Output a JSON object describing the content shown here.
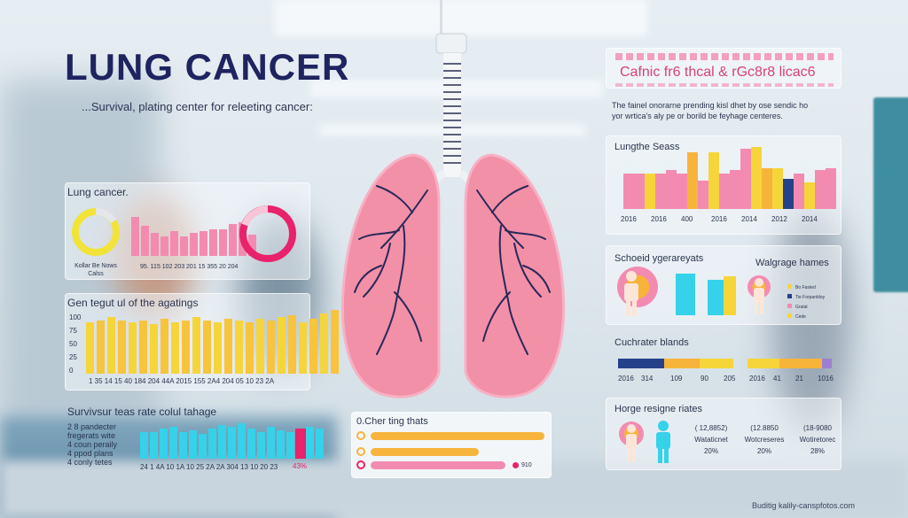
{
  "header": {
    "title": "LUNG CANCER",
    "subtitle": "...Survival, plating center for releeting cancer:"
  },
  "left_card1": {
    "heading": "Lung cancer.",
    "legend": "Kollar Be Nows\nCalss",
    "xlabels": "95. 115 102 203 201 15 355 20 204",
    "donut_left_color": "#f2e33a",
    "donut_right_color": "#e8226b"
  },
  "left_card2": {
    "heading": "Gen tegut ul of the agatings",
    "yticks": [
      "100",
      "75",
      "50",
      "25",
      "0"
    ],
    "xlabels": "1 35 14 15 40 184 204 44A 2015 155 2A4 204 05 10 23 2A"
  },
  "left_card3": {
    "heading": "Survivsur teas rate colul tahage",
    "items": [
      "2 8 pandecter",
      "fregerats wite",
      "4 coun peraily",
      "4 ppod plans",
      "4 conly tetes"
    ],
    "xlabels": "24 1 4A 10 1A 10 25 2A 2A 304 13 10 20 23",
    "highlight": "43%"
  },
  "bottom_center": {
    "heading": "0.Cher ting thats",
    "value": "910"
  },
  "right_header": {
    "banner": "Cafnic fr6 thcal & rGc8r8 licac6",
    "description": "The fainel onorarne prending kisl dhet by ose sendic ho\nyor wrtica's aly pe or borild be feyhage centeres."
  },
  "right_card1": {
    "heading": "Lungthe Seass",
    "xlabels": [
      "2016",
      "2016",
      "400",
      "2016",
      "2014",
      "2012",
      "2014"
    ]
  },
  "right_card2": {
    "heading_left": "Schoeid ygerareyats",
    "heading_right": "Walgrage hames",
    "legend": [
      "Bo Fasted",
      "Tie Forpanldoy",
      "Gralat",
      "Cede"
    ]
  },
  "right_card3": {
    "heading": "Cuchrater blands",
    "xlabels": [
      "2016",
      "314",
      "109",
      "90",
      "205",
      "2016",
      "41",
      "21",
      "1016"
    ]
  },
  "right_card4": {
    "heading": "Horge resigne riates",
    "stats": [
      {
        "top": "( 12,8852)",
        "mid": "Wataticnet",
        "pct": "20%"
      },
      {
        "top": "(12.8850",
        "mid": "Wotcreseres",
        "pct": "20%"
      },
      {
        "top": "(18-9080",
        "mid": "Wotiretorec",
        "pct": "28%"
      }
    ]
  },
  "footer": "Buditig kalily-canspfotos.com",
  "colors": {
    "pink": "#f38bb0",
    "yellow": "#f6d53a",
    "cyan": "#35d2ea",
    "orange": "#f7b43b",
    "navy": "#1e2460",
    "magenta": "#e8226b"
  }
}
